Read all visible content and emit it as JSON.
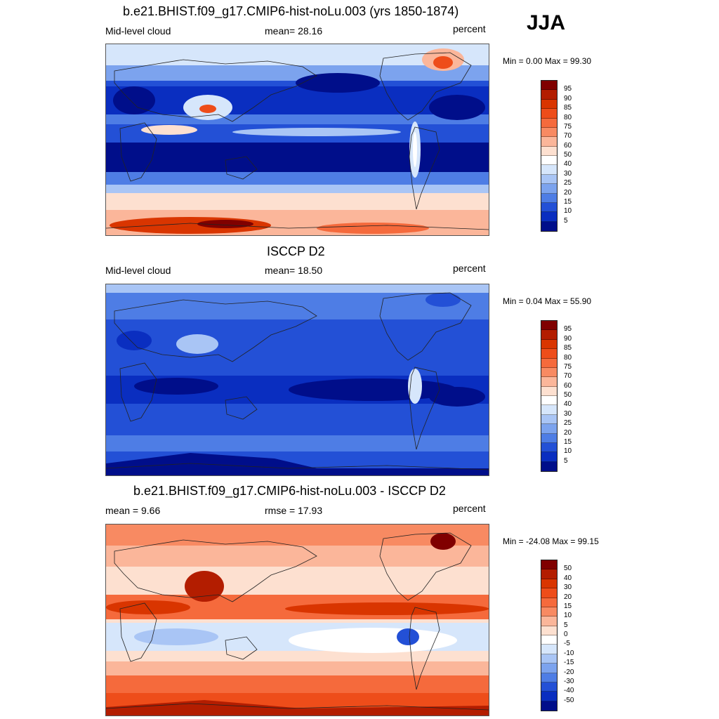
{
  "season": "JJA",
  "panels": [
    {
      "title": "b.e21.BHIST.f09_g17.CMIP6-hist-noLu.003 (yrs 1850-1874)",
      "left": "Mid-level cloud",
      "center": "mean=  28.16",
      "right": "percent",
      "minmax": "Min =   0.00 Max =  99.30",
      "colorbar": {
        "labels": [
          "95",
          "90",
          "85",
          "80",
          "75",
          "70",
          "60",
          "50",
          "40",
          "30",
          "25",
          "20",
          "15",
          "10",
          "5"
        ],
        "colors": [
          "#800000",
          "#b31d00",
          "#d93500",
          "#ee4d1a",
          "#f56a3c",
          "#f88a62",
          "#fbb69a",
          "#fde0d0",
          "#ffffff",
          "#d6e6fb",
          "#a9c5f5",
          "#7ca3ee",
          "#4e7de5",
          "#2350d6",
          "#0a2ec0",
          "#000e8a"
        ]
      }
    },
    {
      "title": "ISCCP D2",
      "left": "Mid-level cloud",
      "center": "mean=  18.50",
      "right": "percent",
      "minmax": "Min =   0.04 Max =  55.90",
      "colorbar": {
        "labels": [
          "95",
          "90",
          "85",
          "80",
          "75",
          "70",
          "60",
          "50",
          "40",
          "30",
          "25",
          "20",
          "15",
          "10",
          "5"
        ],
        "colors": [
          "#800000",
          "#b31d00",
          "#d93500",
          "#ee4d1a",
          "#f56a3c",
          "#f88a62",
          "#fbb69a",
          "#fde0d0",
          "#ffffff",
          "#d6e6fb",
          "#a9c5f5",
          "#7ca3ee",
          "#4e7de5",
          "#2350d6",
          "#0a2ec0",
          "#000e8a"
        ]
      }
    },
    {
      "title": "b.e21.BHIST.f09_g17.CMIP6-hist-noLu.003 - ISCCP D2",
      "left": "mean =   9.66",
      "center": "rmse =  17.93",
      "right": "percent",
      "minmax": "Min = -24.08 Max =  99.15",
      "colorbar": {
        "labels": [
          "50",
          "40",
          "30",
          "20",
          "15",
          "10",
          "5",
          "0",
          "-5",
          "-10",
          "-15",
          "-20",
          "-30",
          "-40",
          "-50"
        ],
        "colors": [
          "#800000",
          "#b31d00",
          "#d93500",
          "#ee4d1a",
          "#f56a3c",
          "#f88a62",
          "#fbb69a",
          "#fde0d0",
          "#ffffff",
          "#d6e6fb",
          "#a9c5f5",
          "#7ca3ee",
          "#4e7de5",
          "#2350d6",
          "#0a2ec0",
          "#000e8a"
        ]
      }
    }
  ]
}
